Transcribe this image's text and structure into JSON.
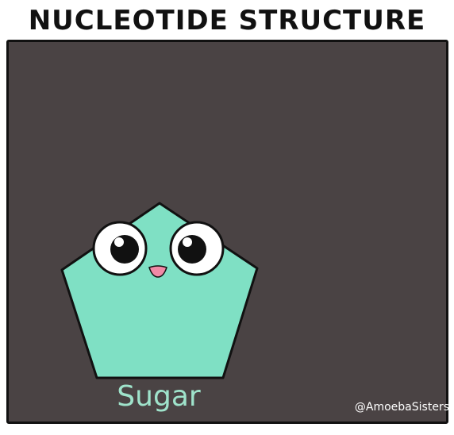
{
  "title": "NUCLEOTIDE STRUCTURE",
  "sugar": {
    "label": "Sugar",
    "fill_color": "#7fe0c4",
    "outline_color": "#111111",
    "mouth_color": "#f08aa6"
  },
  "panel_color": "#4a4344",
  "label_color": "#9fe3cb",
  "credit": "@AmoebaSisters"
}
